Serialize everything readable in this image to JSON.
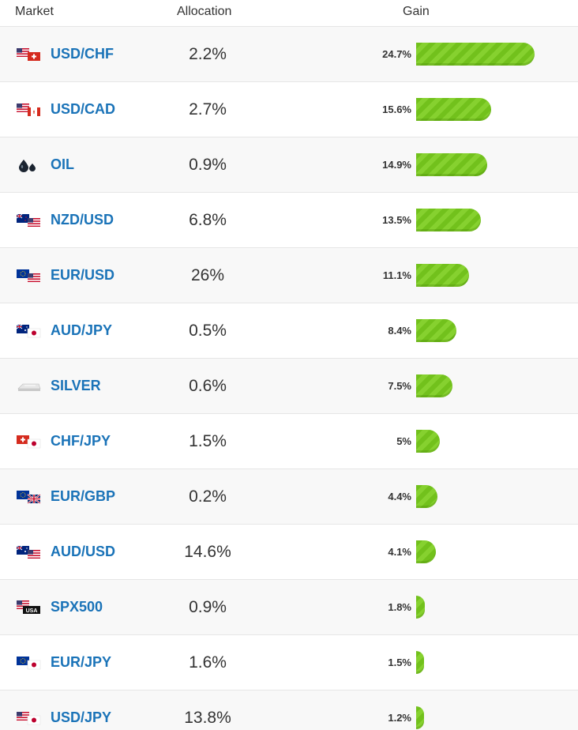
{
  "header": {
    "market": "Market",
    "allocation": "Allocation",
    "gain": "Gain"
  },
  "accent": "#1a73b8",
  "bar_color": "#72c11c",
  "rows": [
    {
      "name": "USD/CHF",
      "icon": "us-ch-flag-icon",
      "allocation": "2.2%",
      "gain": "24.7%",
      "gain_value": 24.7
    },
    {
      "name": "USD/CAD",
      "icon": "us-ca-flag-icon",
      "allocation": "2.7%",
      "gain": "15.6%",
      "gain_value": 15.6
    },
    {
      "name": "OIL",
      "icon": "oil-drops-icon",
      "allocation": "0.9%",
      "gain": "14.9%",
      "gain_value": 14.9
    },
    {
      "name": "NZD/USD",
      "icon": "nz-us-flag-icon",
      "allocation": "6.8%",
      "gain": "13.5%",
      "gain_value": 13.5
    },
    {
      "name": "EUR/USD",
      "icon": "eu-us-flag-icon",
      "allocation": "26%",
      "gain": "11.1%",
      "gain_value": 11.1
    },
    {
      "name": "AUD/JPY",
      "icon": "au-jp-flag-icon",
      "allocation": "0.5%",
      "gain": "8.4%",
      "gain_value": 8.4
    },
    {
      "name": "SILVER",
      "icon": "silver-bar-icon",
      "allocation": "0.6%",
      "gain": "7.5%",
      "gain_value": 7.5
    },
    {
      "name": "CHF/JPY",
      "icon": "ch-jp-flag-icon",
      "allocation": "1.5%",
      "gain": "5%",
      "gain_value": 5
    },
    {
      "name": "EUR/GBP",
      "icon": "eu-gb-flag-icon",
      "allocation": "0.2%",
      "gain": "4.4%",
      "gain_value": 4.4
    },
    {
      "name": "AUD/USD",
      "icon": "au-us-flag-icon",
      "allocation": "14.6%",
      "gain": "4.1%",
      "gain_value": 4.1
    },
    {
      "name": "SPX500",
      "icon": "us-usa-index-icon",
      "allocation": "0.9%",
      "gain": "1.8%",
      "gain_value": 1.8
    },
    {
      "name": "EUR/JPY",
      "icon": "eu-jp-flag-icon",
      "allocation": "1.6%",
      "gain": "1.5%",
      "gain_value": 1.5
    },
    {
      "name": "USD/JPY",
      "icon": "us-jp-flag-icon",
      "allocation": "13.8%",
      "gain": "1.2%",
      "gain_value": 1.2
    }
  ]
}
